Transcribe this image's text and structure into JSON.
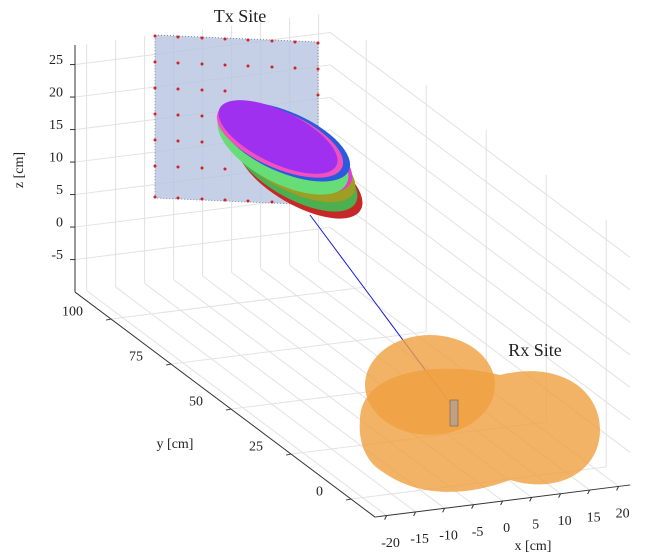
{
  "chart_data": {
    "type": "3d",
    "annotations": [
      "Tx Site",
      "Rx Site"
    ],
    "xlabel": "x [cm]",
    "ylabel": "y [cm]",
    "zlabel": "z [cm]",
    "xlim": [
      -22,
      22
    ],
    "ylim": [
      -10,
      115
    ],
    "zlim": [
      -10,
      28
    ],
    "xticks": [
      -20,
      -15,
      -10,
      -5,
      0,
      5,
      10,
      15,
      20
    ],
    "yticks": [
      0,
      25,
      50,
      75,
      100
    ],
    "zticks": [
      -5,
      0,
      5,
      10,
      15,
      20,
      25
    ],
    "grid": true
  }
}
